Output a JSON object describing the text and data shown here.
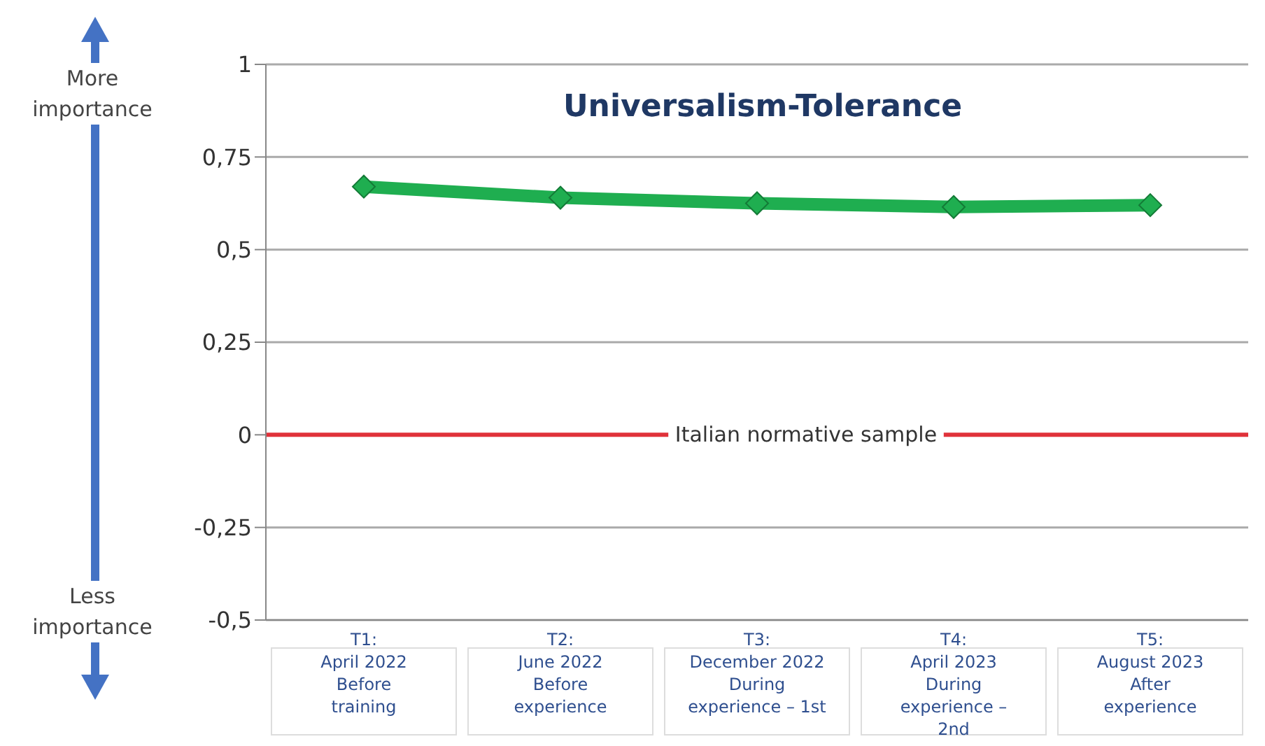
{
  "chart_data": {
    "type": "line",
    "title": "Universalism-Tolerance",
    "categories": [
      "T1:\nApril 2022\nBefore\ntraining",
      "T2:\nJune 2022\nBefore\nexperience",
      "T3:\nDecember 2022\nDuring\nexperience – 1st",
      "T4:\nApril 2023\nDuring\nexperience –\n2nd",
      "T5:\nAugust 2023\nAfter\nexperience"
    ],
    "series": [
      {
        "color": "#1fae50",
        "values": [
          0.67,
          0.64,
          0.625,
          0.615,
          0.62
        ]
      }
    ],
    "ylim": [
      -0.5,
      1
    ],
    "yticks": [
      {
        "value": -0.5,
        "label": "-0,5"
      },
      {
        "value": -0.25,
        "label": "-0,25"
      },
      0,
      {
        "value": 0.25,
        "label": "0,25"
      },
      {
        "value": 0.5,
        "label": "0,5"
      },
      {
        "value": 0.75,
        "label": "0,75"
      },
      1
    ],
    "ref_lines": [
      {
        "axis": "y",
        "value": 0,
        "label": "Italian normative sample",
        "color": "#e0323a"
      }
    ],
    "annotations": [
      "More\nimportance",
      "Less\nimportance"
    ],
    "grid": "y",
    "legend": false,
    "marker": "diamond",
    "line_style": "solid"
  }
}
